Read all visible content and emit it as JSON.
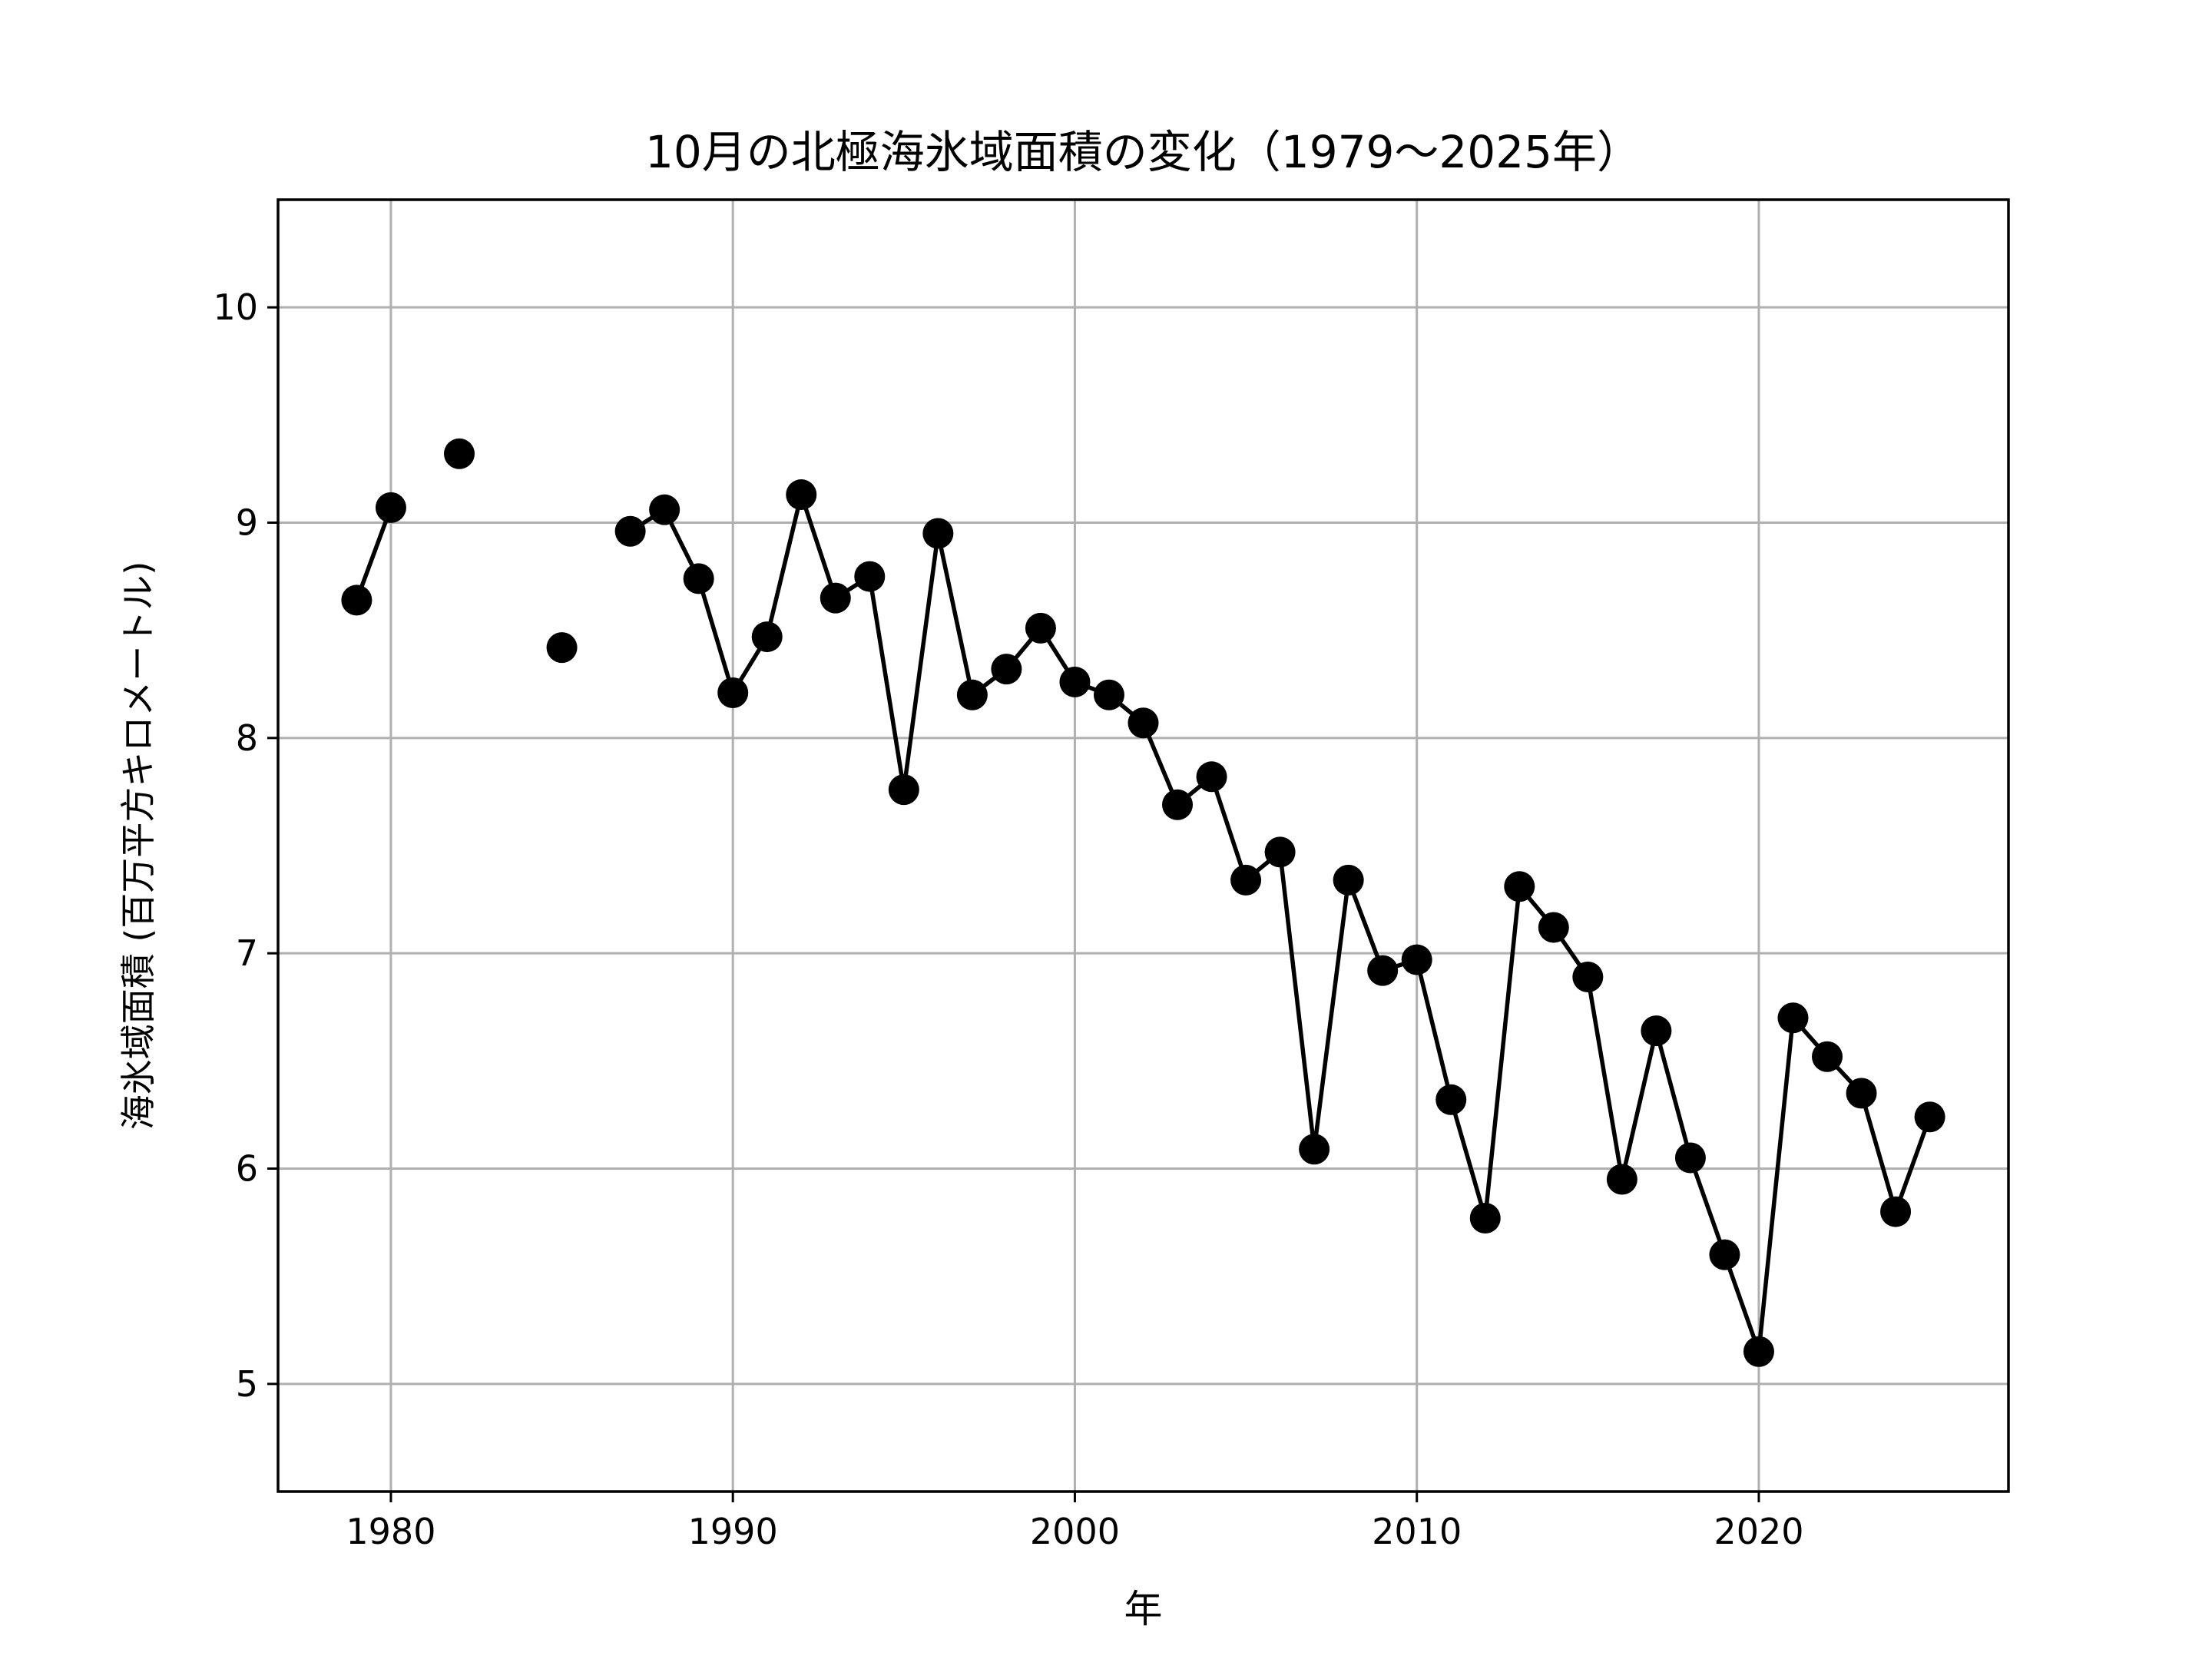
{
  "chart_data": {
    "type": "line",
    "title": "10月の北極海氷域面積の変化（1979〜2025年）",
    "xlabel": "年",
    "ylabel": "海氷域面積 (百万平方キロメートル)",
    "xlim": [
      1976.7,
      2027.3
    ],
    "ylim": [
      4.5,
      10.5
    ],
    "xticks": [
      1980,
      1990,
      2000,
      2010,
      2020
    ],
    "yticks": [
      5,
      6,
      7,
      8,
      9,
      10
    ],
    "grid": true,
    "legend": null,
    "series": [
      {
        "color": "#000000",
        "marker": "circle",
        "x": [
          1979,
          1980,
          1981,
          1982,
          1983,
          1984,
          1985,
          1986,
          1987,
          1988,
          1989,
          1990,
          1991,
          1992,
          1993,
          1994,
          1995,
          1996,
          1997,
          1998,
          1999,
          2000,
          2001,
          2002,
          2003,
          2004,
          2005,
          2006,
          2007,
          2008,
          2009,
          2010,
          2011,
          2012,
          2013,
          2014,
          2015,
          2016,
          2017,
          2018,
          2019,
          2020,
          2021,
          2022,
          2023,
          2024,
          2025
        ],
        "y": [
          8.64,
          9.07,
          null,
          9.32,
          null,
          null,
          8.42,
          null,
          8.96,
          9.06,
          8.74,
          8.21,
          8.47,
          9.13,
          8.65,
          8.75,
          7.76,
          8.95,
          8.2,
          8.32,
          8.51,
          8.26,
          8.2,
          8.07,
          7.69,
          7.82,
          7.34,
          7.47,
          6.09,
          7.34,
          6.92,
          6.97,
          6.32,
          5.77,
          7.31,
          7.12,
          6.89,
          5.95,
          6.64,
          6.05,
          5.6,
          5.15,
          6.7,
          6.52,
          6.35,
          5.8,
          6.24
        ]
      }
    ]
  }
}
